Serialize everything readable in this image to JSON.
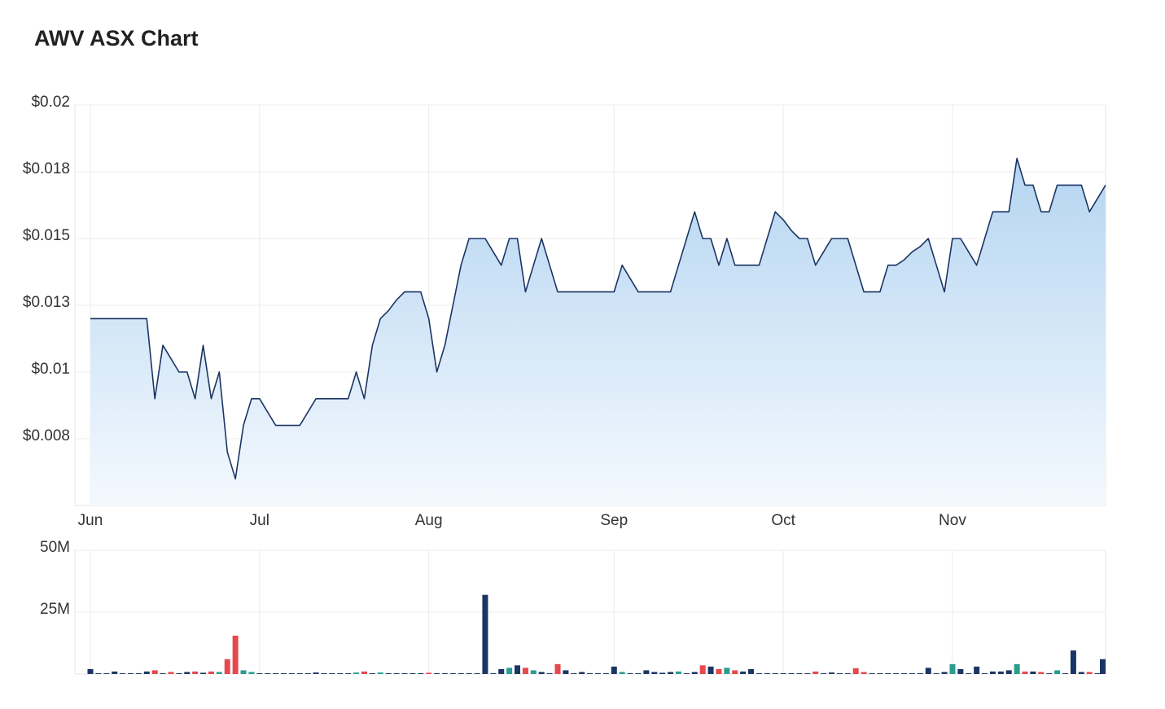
{
  "chart_data": [
    {
      "type": "area",
      "title": "AWV ASX Chart",
      "categories": [
        "Jun",
        null,
        null,
        null,
        null,
        null,
        null,
        null,
        null,
        null,
        null,
        null,
        null,
        null,
        null,
        null,
        null,
        null,
        null,
        null,
        null,
        "Jul",
        null,
        null,
        null,
        null,
        null,
        null,
        null,
        null,
        null,
        null,
        null,
        null,
        null,
        null,
        null,
        null,
        null,
        null,
        null,
        null,
        "Aug",
        null,
        null,
        null,
        null,
        null,
        null,
        null,
        null,
        null,
        null,
        null,
        null,
        null,
        null,
        null,
        null,
        null,
        null,
        null,
        null,
        null,
        null,
        "Sep",
        null,
        null,
        null,
        null,
        null,
        null,
        null,
        null,
        null,
        null,
        null,
        null,
        null,
        null,
        null,
        null,
        null,
        null,
        null,
        null,
        "Oct",
        null,
        null,
        null,
        null,
        null,
        null,
        null,
        null,
        null,
        null,
        null,
        null,
        null,
        null,
        null,
        null,
        null,
        null,
        null,
        null,
        "Nov",
        null,
        null,
        null,
        null,
        null,
        null,
        null,
        null,
        null,
        null,
        null,
        null,
        null,
        null,
        null,
        null,
        null,
        null,
        null
      ],
      "values": [
        0.012,
        0.012,
        0.012,
        0.012,
        0.012,
        0.012,
        0.012,
        0.012,
        0.009,
        0.011,
        0.0105,
        0.01,
        0.01,
        0.009,
        0.011,
        0.009,
        0.01,
        0.007,
        0.006,
        0.008,
        0.009,
        0.009,
        0.0085,
        0.008,
        0.008,
        0.008,
        0.008,
        0.0085,
        0.009,
        0.009,
        0.009,
        0.009,
        0.009,
        0.01,
        0.009,
        0.011,
        0.012,
        0.0123,
        0.0127,
        0.013,
        0.013,
        0.013,
        0.012,
        0.01,
        0.011,
        0.0125,
        0.014,
        0.015,
        0.015,
        0.015,
        0.0145,
        0.014,
        0.015,
        0.015,
        0.013,
        0.014,
        0.015,
        0.014,
        0.013,
        0.013,
        0.013,
        0.013,
        0.013,
        0.013,
        0.013,
        0.013,
        0.014,
        0.0135,
        0.013,
        0.013,
        0.013,
        0.013,
        0.013,
        0.014,
        0.015,
        0.016,
        0.015,
        0.015,
        0.014,
        0.015,
        0.014,
        0.014,
        0.014,
        0.014,
        0.015,
        0.016,
        0.0157,
        0.0153,
        0.015,
        0.015,
        0.014,
        0.0145,
        0.015,
        0.015,
        0.015,
        0.014,
        0.013,
        0.013,
        0.013,
        0.014,
        0.014,
        0.0142,
        0.0145,
        0.0147,
        0.015,
        0.014,
        0.013,
        0.015,
        0.015,
        0.0145,
        0.014,
        0.015,
        0.016,
        0.016,
        0.016,
        0.018,
        0.017,
        0.017,
        0.016,
        0.016,
        0.017,
        0.017,
        0.017,
        0.017,
        0.016,
        0.0165,
        0.017
      ],
      "color": "#1b3564",
      "ylim": [
        0.005,
        0.02
      ],
      "yticks": [
        {
          "value": 0.0075,
          "label": "$0.008"
        },
        {
          "value": 0.01,
          "label": "$0.01"
        },
        {
          "value": 0.0125,
          "label": "$0.013"
        },
        {
          "value": 0.015,
          "label": "$0.015"
        },
        {
          "value": 0.0175,
          "label": "$0.018"
        },
        {
          "value": 0.02,
          "label": "$0.02"
        }
      ],
      "grid": true
    },
    {
      "type": "bar",
      "values": [
        2000000,
        300000,
        300000,
        1000000,
        300000,
        300000,
        300000,
        1000000,
        1500000,
        300000,
        800000,
        300000,
        800000,
        1000000,
        500000,
        1000000,
        800000,
        6000000,
        15500000,
        1500000,
        800000,
        300000,
        300000,
        300000,
        300000,
        300000,
        300000,
        300000,
        600000,
        300000,
        300000,
        300000,
        300000,
        600000,
        1000000,
        300000,
        600000,
        300000,
        300000,
        300000,
        300000,
        300000,
        500000,
        300000,
        300000,
        300000,
        300000,
        300000,
        300000,
        32000000,
        300000,
        2000000,
        2500000,
        3500000,
        2500000,
        1500000,
        800000,
        300000,
        4000000,
        1500000,
        300000,
        800000,
        300000,
        300000,
        300000,
        3000000,
        800000,
        300000,
        300000,
        1500000,
        800000,
        500000,
        800000,
        1000000,
        300000,
        800000,
        3500000,
        3000000,
        2000000,
        2500000,
        1500000,
        1000000,
        2000000,
        300000,
        300000,
        300000,
        300000,
        300000,
        300000,
        300000,
        1000000,
        300000,
        600000,
        300000,
        300000,
        2300000,
        800000,
        300000,
        300000,
        300000,
        300000,
        300000,
        300000,
        300000,
        2500000,
        300000,
        800000,
        4000000,
        2000000,
        300000,
        3000000,
        300000,
        1000000,
        1000000,
        1500000,
        4000000,
        1000000,
        1000000,
        800000,
        300000,
        1500000,
        300000,
        9500000,
        800000,
        800000,
        300000,
        6000000
      ],
      "colors": [
        "#1b3564",
        "#1b3564",
        "#1b3564",
        "#1b3564",
        "#1b3564",
        "#1b3564",
        "#1b3564",
        "#1b3564",
        "#e5484d",
        "#1b3564",
        "#e5484d",
        "#1b3564",
        "#1b3564",
        "#e5484d",
        "#1b3564",
        "#e5484d",
        "#2a9d8f",
        "#e5484d",
        "#e5484d",
        "#2a9d8f",
        "#2a9d8f",
        "#1b3564",
        "#1b3564",
        "#1b3564",
        "#1b3564",
        "#1b3564",
        "#1b3564",
        "#1b3564",
        "#1b3564",
        "#1b3564",
        "#1b3564",
        "#1b3564",
        "#1b3564",
        "#2a9d8f",
        "#e5484d",
        "#1b3564",
        "#2a9d8f",
        "#1b3564",
        "#1b3564",
        "#1b3564",
        "#1b3564",
        "#1b3564",
        "#e5484d",
        "#1b3564",
        "#1b3564",
        "#1b3564",
        "#1b3564",
        "#1b3564",
        "#1b3564",
        "#1b3564",
        "#1b3564",
        "#1b3564",
        "#2a9d8f",
        "#1b3564",
        "#e5484d",
        "#2a9d8f",
        "#1b3564",
        "#1b3564",
        "#e5484d",
        "#1b3564",
        "#1b3564",
        "#1b3564",
        "#1b3564",
        "#1b3564",
        "#1b3564",
        "#1b3564",
        "#2a9d8f",
        "#1b3564",
        "#1b3564",
        "#1b3564",
        "#1b3564",
        "#1b3564",
        "#1b3564",
        "#2a9d8f",
        "#1b3564",
        "#1b3564",
        "#e5484d",
        "#1b3564",
        "#e5484d",
        "#2a9d8f",
        "#e5484d",
        "#1b3564",
        "#1b3564",
        "#1b3564",
        "#1b3564",
        "#1b3564",
        "#1b3564",
        "#1b3564",
        "#1b3564",
        "#1b3564",
        "#e5484d",
        "#1b3564",
        "#1b3564",
        "#1b3564",
        "#1b3564",
        "#e5484d",
        "#e5484d",
        "#1b3564",
        "#1b3564",
        "#1b3564",
        "#1b3564",
        "#1b3564",
        "#1b3564",
        "#1b3564",
        "#1b3564",
        "#1b3564",
        "#1b3564",
        "#2a9d8f",
        "#1b3564",
        "#1b3564",
        "#1b3564",
        "#1b3564",
        "#1b3564",
        "#1b3564",
        "#1b3564",
        "#2a9d8f",
        "#e5484d",
        "#1b3564",
        "#e5484d",
        "#1b3564",
        "#2a9d8f",
        "#1b3564",
        "#1b3564",
        "#1b3564",
        "#e5484d",
        "#1b3564",
        "#1b3564"
      ],
      "ylim": [
        0,
        50000000
      ],
      "yticks": [
        {
          "value": 25000000,
          "label": "25M"
        },
        {
          "value": 50000000,
          "label": "50M"
        }
      ],
      "grid": true
    }
  ]
}
